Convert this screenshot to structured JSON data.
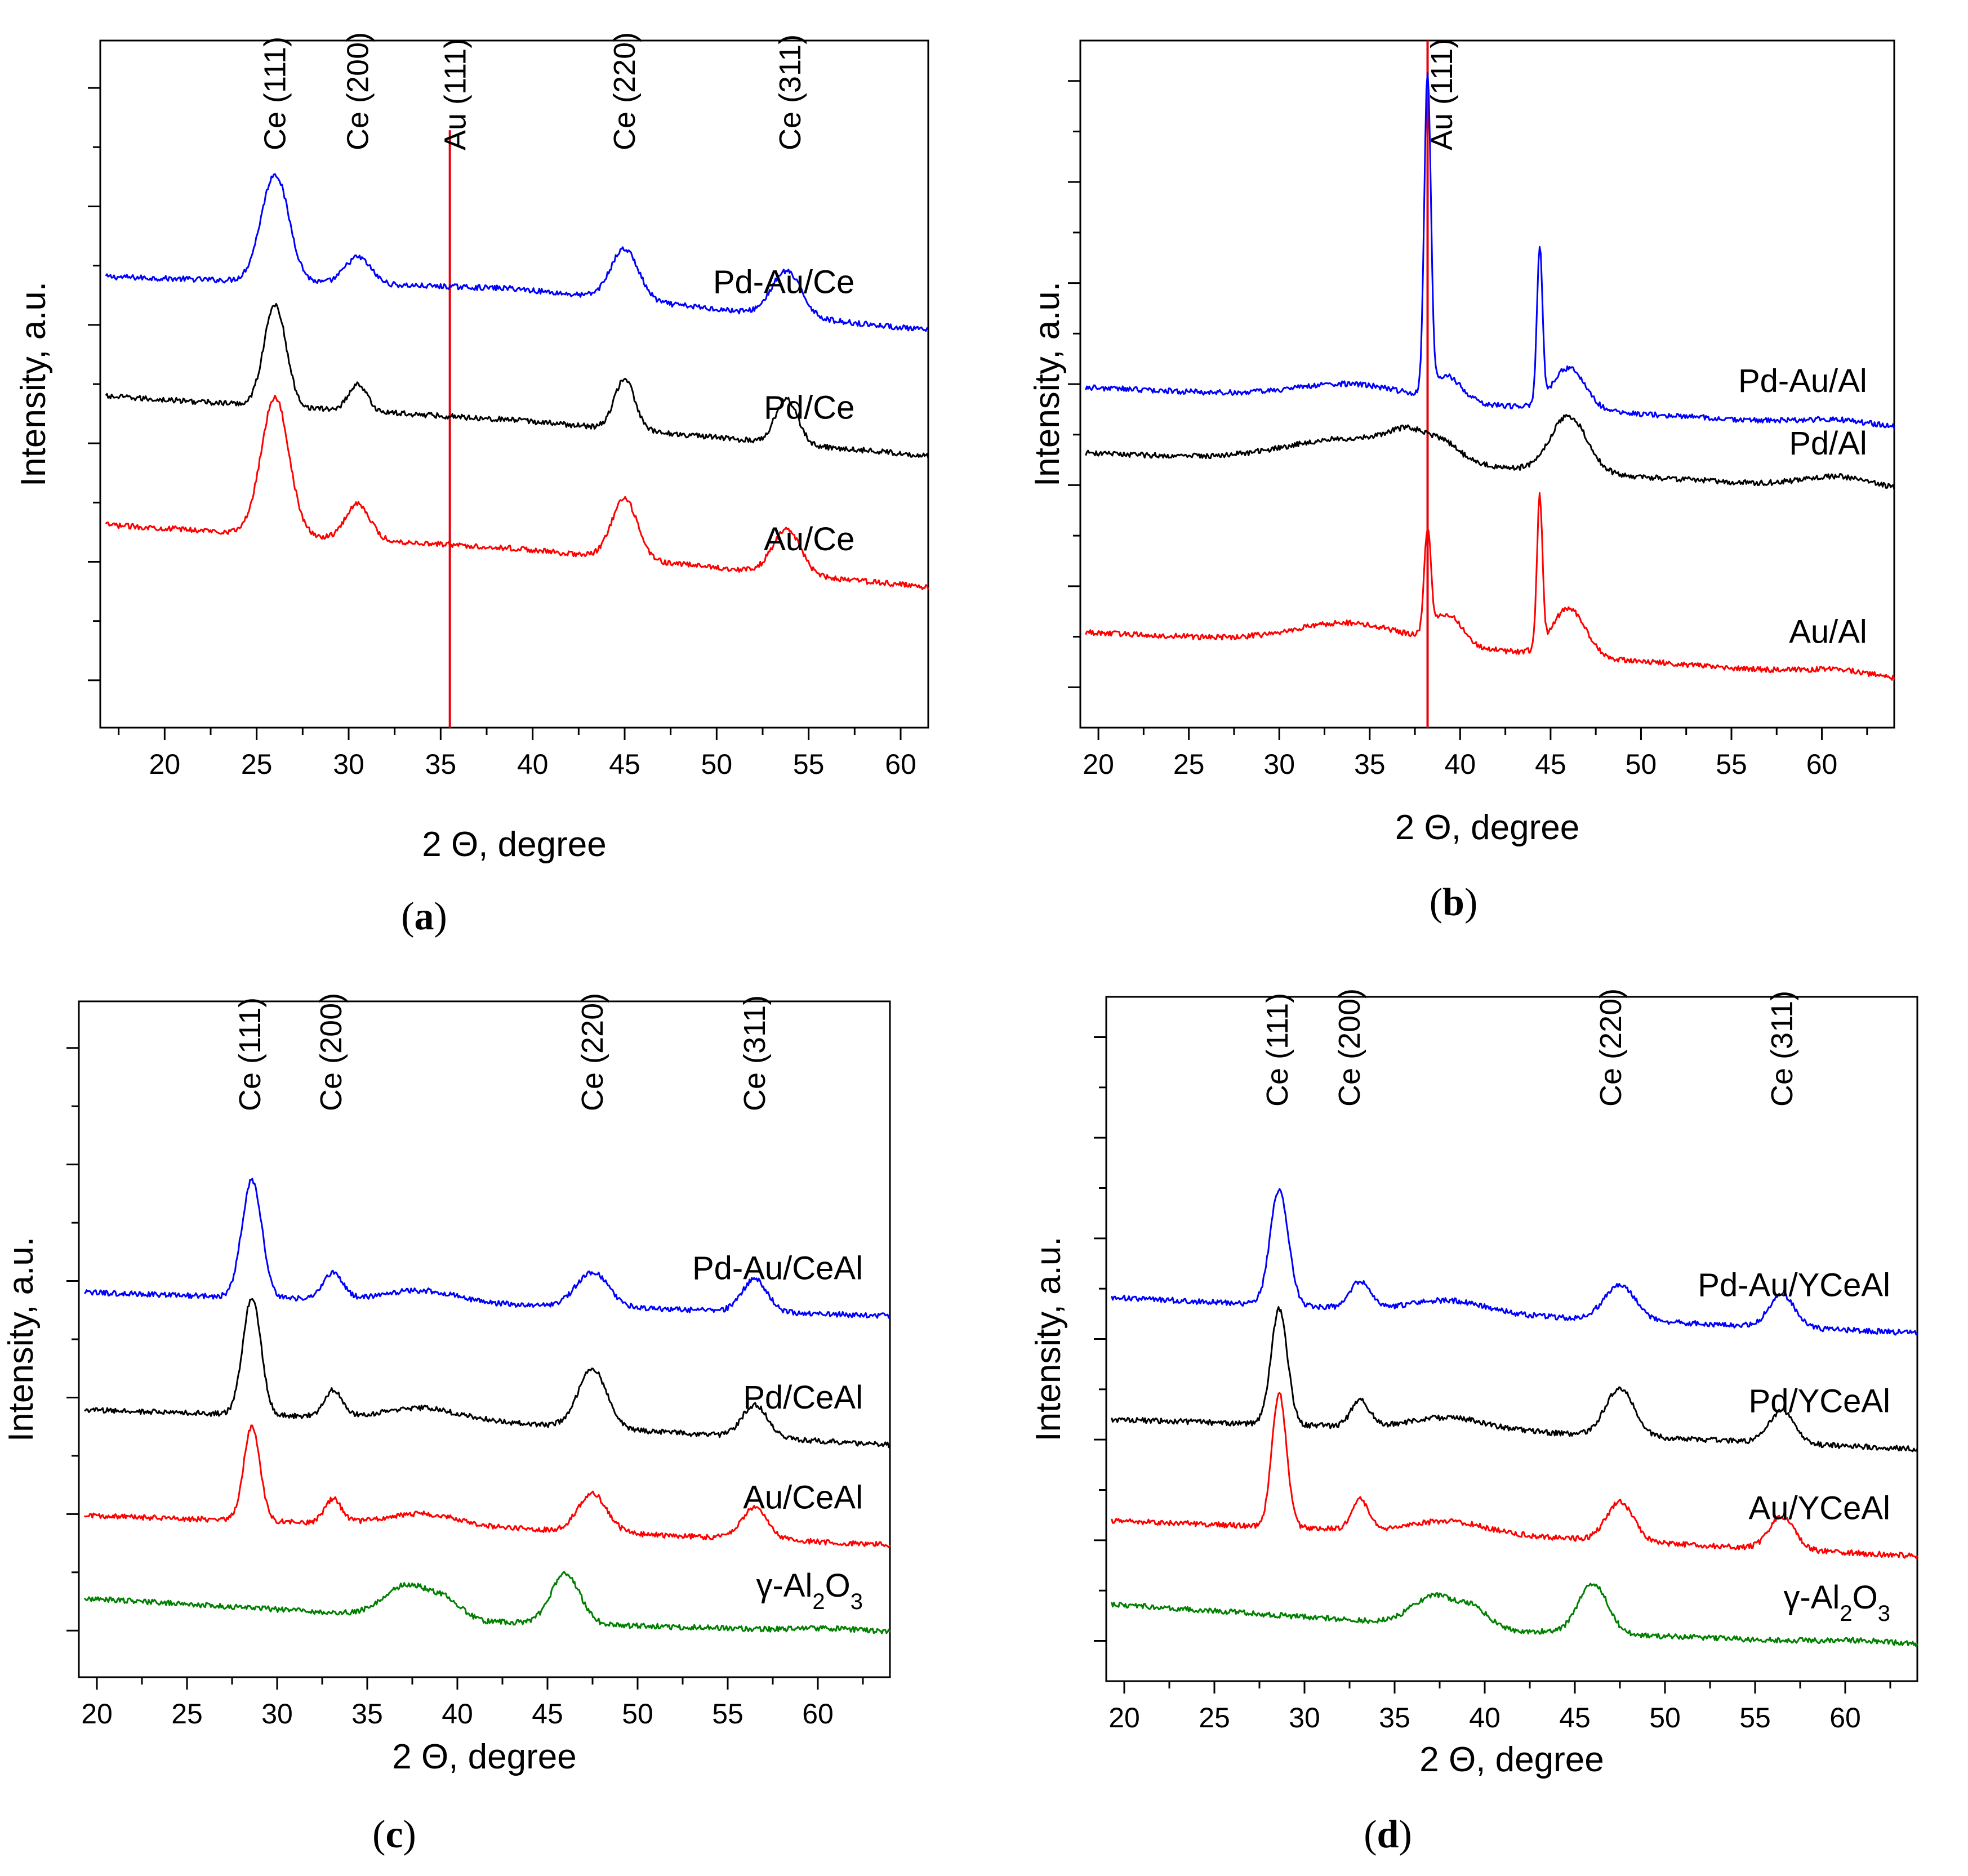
{
  "figure": {
    "panels_count": 4
  },
  "chart_data": [
    {
      "type": "line",
      "panel": "a",
      "caption_letter": "a",
      "xlabel": "2 Θ, degree",
      "ylabel": "Intensity, a.u.",
      "xlim": [
        16.5,
        61.5
      ],
      "x_ticks": [
        20,
        25,
        30,
        35,
        40,
        45,
        50,
        55,
        60
      ],
      "y_ticks": [
        true,
        true,
        true,
        true,
        true
      ],
      "peak_labels": [
        {
          "text": "Ce (111)",
          "x": 26.0
        },
        {
          "text": "Ce (200)",
          "x": 30.5
        },
        {
          "text": "Au (111)",
          "x": 35.8
        },
        {
          "text": "Ce (220)",
          "x": 45.0
        },
        {
          "text": "Ce (311)",
          "x": 54.0
        }
      ],
      "reference_lines": [
        {
          "x": 35.5,
          "color": "#e8000b"
        }
      ],
      "series": [
        {
          "name": "Pd-Au/Ce",
          "color": "#0000ff",
          "baseline": [
            7.55,
            7.35,
            6.65
          ],
          "peaks": [
            [
              26.0,
              1.8,
              0.75
            ],
            [
              30.5,
              0.45,
              0.7
            ],
            [
              45.0,
              0.85,
              0.75
            ],
            [
              53.8,
              0.75,
              0.8
            ]
          ],
          "label_x": 57.5
        },
        {
          "name": "Pd/Ce",
          "color": "#000000",
          "baseline": [
            5.55,
            5.15,
            4.55
          ],
          "peaks": [
            [
              26.0,
              1.7,
              0.6
            ],
            [
              30.5,
              0.45,
              0.5
            ],
            [
              45.0,
              0.85,
              0.55
            ],
            [
              53.8,
              0.75,
              0.6
            ]
          ],
          "label_x": 57.5
        },
        {
          "name": "Au/Ce",
          "color": "#ff0000",
          "baseline": [
            3.4,
            3.0,
            2.35
          ],
          "peaks": [
            [
              26.0,
              2.3,
              0.75
            ],
            [
              30.5,
              0.6,
              0.65
            ],
            [
              45.0,
              1.0,
              0.7
            ],
            [
              53.8,
              0.75,
              0.75
            ]
          ],
          "label_x": 57.5
        }
      ],
      "ylim": [
        0,
        11.5
      ]
    },
    {
      "type": "line",
      "panel": "b",
      "caption_letter": "b",
      "xlabel": "2 Θ, degree",
      "ylabel": "Intensity, a.u.",
      "xlim": [
        19,
        64
      ],
      "x_ticks": [
        20,
        25,
        30,
        35,
        40,
        45,
        50,
        55,
        60
      ],
      "y_ticks": [
        true,
        true,
        true,
        true,
        true,
        true
      ],
      "peak_labels": [
        {
          "text": "Au (111)",
          "x": 39.0
        }
      ],
      "reference_lines": [
        {
          "x": 38.2,
          "color": "#e8000b"
        }
      ],
      "series": [
        {
          "name": "Pd-Au/Al",
          "color": "#0000ff",
          "baseline": [
            5.7,
            5.4,
            5.0
          ],
          "peaks": [
            [
              38.2,
              5.3,
              0.18
            ],
            [
              34.0,
              0.25,
              3.0
            ],
            [
              39.3,
              0.4,
              0.8
            ],
            [
              44.4,
              2.6,
              0.15
            ],
            [
              46.0,
              0.7,
              0.9
            ],
            [
              61.0,
              0.1,
              2.0
            ]
          ],
          "label_x": 62.5
        },
        {
          "name": "Pd/Al",
          "color": "#000000",
          "baseline": [
            4.6,
            4.35,
            3.95
          ],
          "peaks": [
            [
              34.0,
              0.4,
              3.5
            ],
            [
              37.3,
              0.35,
              1.2
            ],
            [
              39.3,
              0.2,
              0.8
            ],
            [
              46.0,
              0.95,
              1.0
            ],
            [
              61.0,
              0.2,
              2.0
            ]
          ],
          "label_x": 62.5
        },
        {
          "name": "Au/Al",
          "color": "#ff0000",
          "baseline": [
            1.6,
            1.3,
            0.8
          ],
          "peaks": [
            [
              38.2,
              1.7,
              0.18
            ],
            [
              34.0,
              0.35,
              3.0
            ],
            [
              39.3,
              0.5,
              0.8
            ],
            [
              44.4,
              2.5,
              0.15
            ],
            [
              46.0,
              0.8,
              0.9
            ],
            [
              61.0,
              0.1,
              2.0
            ]
          ],
          "label_x": 62.5
        }
      ],
      "ylim": [
        0,
        11.5
      ]
    },
    {
      "type": "line",
      "panel": "c",
      "caption_letter": "c",
      "xlabel": "2 Θ, degree",
      "ylabel": "Intensity, a.u.",
      "xlim": [
        19,
        64
      ],
      "x_ticks": [
        20,
        25,
        30,
        35,
        40,
        45,
        50,
        55,
        60
      ],
      "y_ticks": [
        true,
        true,
        true,
        true,
        true
      ],
      "peak_labels": [
        {
          "text": "Ce (111)",
          "x": 28.5
        },
        {
          "text": "Ce (200)",
          "x": 33.0
        },
        {
          "text": "Ce (220)",
          "x": 47.5
        },
        {
          "text": "Ce (311)",
          "x": 56.5
        }
      ],
      "reference_lines": [],
      "series": [
        {
          "name": "Pd-Au/CeAl",
          "color": "#0000ff",
          "baseline": [
            6.55,
            6.35,
            6.15
          ],
          "peaks": [
            [
              28.6,
              2.0,
              0.55
            ],
            [
              33.1,
              0.45,
              0.55
            ],
            [
              38.0,
              0.2,
              2.0
            ],
            [
              47.5,
              0.6,
              0.9
            ],
            [
              56.5,
              0.55,
              0.7
            ]
          ],
          "label_x": 62.5
        },
        {
          "name": "Pd/CeAl",
          "color": "#000000",
          "baseline": [
            4.55,
            4.35,
            3.95
          ],
          "peaks": [
            [
              28.6,
              2.0,
              0.5
            ],
            [
              33.1,
              0.45,
              0.5
            ],
            [
              38.0,
              0.2,
              2.0
            ],
            [
              47.5,
              1.0,
              0.8
            ],
            [
              56.5,
              0.55,
              0.7
            ]
          ],
          "label_x": 62.5
        },
        {
          "name": "Au/CeAl",
          "color": "#ff0000",
          "baseline": [
            2.75,
            2.55,
            2.25
          ],
          "peaks": [
            [
              28.6,
              1.6,
              0.45
            ],
            [
              33.1,
              0.4,
              0.45
            ],
            [
              38.0,
              0.2,
              2.0
            ],
            [
              47.5,
              0.65,
              0.8
            ],
            [
              56.5,
              0.55,
              0.7
            ]
          ],
          "label_x": 62.5
        },
        {
          "name": "γ-Al2O3",
          "color": "#008000",
          "baseline": [
            1.35,
            0.95,
            0.75
          ],
          "peaks": [
            [
              37.3,
              0.55,
              1.3
            ],
            [
              39.5,
              0.25,
              0.8
            ],
            [
              46.0,
              0.85,
              0.8
            ],
            [
              61.0,
              0.05,
              2.0
            ]
          ],
          "label_x": 62.5
        }
      ],
      "ylim": [
        0,
        11.5
      ]
    },
    {
      "type": "line",
      "panel": "d",
      "caption_letter": "d",
      "xlabel": "2 Θ, degree",
      "ylabel": "Intensity, a.u.",
      "xlim": [
        19,
        64
      ],
      "x_ticks": [
        20,
        25,
        30,
        35,
        40,
        45,
        50,
        55,
        60
      ],
      "y_ticks": [
        true,
        true,
        true,
        true,
        true,
        true
      ],
      "peak_labels": [
        {
          "text": "Ce (111)",
          "x": 28.5
        },
        {
          "text": "Ce (200)",
          "x": 32.5
        },
        {
          "text": "Ce (220)",
          "x": 47.0
        },
        {
          "text": "Ce (311)",
          "x": 56.5
        }
      ],
      "reference_lines": [],
      "series": [
        {
          "name": "Pd-Au/YCeAl",
          "color": "#0000ff",
          "baseline": [
            6.45,
            6.15,
            5.85
          ],
          "peaks": [
            [
              28.6,
              1.95,
              0.5
            ],
            [
              33.1,
              0.45,
              0.55
            ],
            [
              38.0,
              0.2,
              2.0
            ],
            [
              47.5,
              0.6,
              0.85
            ],
            [
              56.5,
              0.55,
              0.7
            ]
          ],
          "label_x": 62.5
        },
        {
          "name": "Pd/YCeAl",
          "color": "#000000",
          "baseline": [
            4.4,
            4.2,
            3.9
          ],
          "peaks": [
            [
              28.6,
              1.95,
              0.45
            ],
            [
              33.1,
              0.45,
              0.5
            ],
            [
              38.0,
              0.2,
              2.0
            ],
            [
              47.5,
              0.8,
              0.8
            ],
            [
              56.5,
              0.55,
              0.7
            ]
          ],
          "label_x": 62.5
        },
        {
          "name": "Au/YCeAl",
          "color": "#ff0000",
          "baseline": [
            2.7,
            2.45,
            2.1
          ],
          "peaks": [
            [
              28.6,
              2.25,
              0.4
            ],
            [
              33.1,
              0.5,
              0.45
            ],
            [
              38.0,
              0.2,
              2.0
            ],
            [
              47.5,
              0.65,
              0.75
            ],
            [
              56.5,
              0.55,
              0.7
            ]
          ],
          "label_x": 62.5
        },
        {
          "name": "γ-Al2O3",
          "color": "#008000",
          "baseline": [
            1.3,
            0.85,
            0.6
          ],
          "peaks": [
            [
              37.3,
              0.5,
              1.3
            ],
            [
              39.5,
              0.25,
              0.8
            ],
            [
              46.0,
              0.85,
              0.8
            ],
            [
              61.0,
              0.05,
              2.0
            ]
          ],
          "label_x": 62.5
        }
      ],
      "ylim": [
        0,
        11.5
      ]
    }
  ]
}
